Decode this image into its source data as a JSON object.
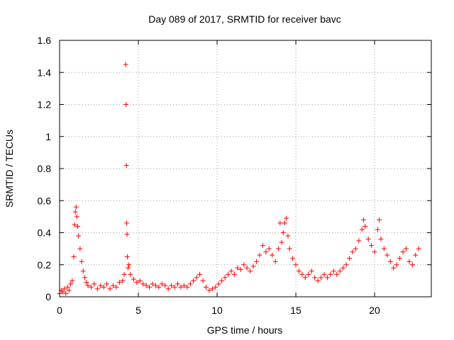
{
  "chart_data": {
    "type": "scatter",
    "title": "Day 089 of 2017, SRMTID for receiver bavc",
    "xlabel": "GPS time / hours",
    "ylabel": "SRMTID / TECUs",
    "xlim": [
      0,
      23.6
    ],
    "ylim": [
      0,
      1.6
    ],
    "xticks": [
      0,
      5,
      10,
      15,
      20
    ],
    "xtick_labels": [
      "0",
      "5",
      "10",
      "15",
      "20"
    ],
    "yticks": [
      0,
      0.2,
      0.4,
      0.6,
      0.8,
      1.0,
      1.2,
      1.4,
      1.6
    ],
    "ytick_labels": [
      "0",
      "0.2",
      "0.4",
      "0.6",
      "0.8",
      "1",
      "1.2",
      "1.4",
      "1.6"
    ],
    "grid": true,
    "marker": "+",
    "series": [
      {
        "name": "SRMTID",
        "color": "#ff0000",
        "points": [
          [
            0.0,
            0.02
          ],
          [
            0.1,
            0.04
          ],
          [
            0.2,
            0.03
          ],
          [
            0.3,
            0.05
          ],
          [
            0.4,
            0.02
          ],
          [
            0.5,
            0.06
          ],
          [
            0.6,
            0.04
          ],
          [
            0.7,
            0.08
          ],
          [
            0.8,
            0.1
          ],
          [
            0.9,
            0.25
          ],
          [
            0.95,
            0.45
          ],
          [
            1.0,
            0.53
          ],
          [
            1.05,
            0.56
          ],
          [
            1.1,
            0.5
          ],
          [
            1.15,
            0.44
          ],
          [
            1.2,
            0.38
          ],
          [
            1.3,
            0.3
          ],
          [
            1.4,
            0.22
          ],
          [
            1.5,
            0.16
          ],
          [
            1.6,
            0.12
          ],
          [
            1.7,
            0.09
          ],
          [
            1.8,
            0.07
          ],
          [
            2.0,
            0.06
          ],
          [
            2.2,
            0.08
          ],
          [
            2.4,
            0.05
          ],
          [
            2.6,
            0.07
          ],
          [
            2.8,
            0.06
          ],
          [
            3.0,
            0.08
          ],
          [
            3.2,
            0.05
          ],
          [
            3.4,
            0.07
          ],
          [
            3.6,
            0.06
          ],
          [
            3.8,
            0.09
          ],
          [
            4.0,
            0.1
          ],
          [
            4.1,
            0.14
          ],
          [
            4.2,
            1.45
          ],
          [
            4.22,
            1.2
          ],
          [
            4.24,
            0.82
          ],
          [
            4.26,
            0.46
          ],
          [
            4.28,
            0.39
          ],
          [
            4.3,
            0.25
          ],
          [
            4.35,
            0.18
          ],
          [
            4.4,
            0.2
          ],
          [
            4.5,
            0.14
          ],
          [
            4.7,
            0.11
          ],
          [
            4.9,
            0.09
          ],
          [
            5.1,
            0.1
          ],
          [
            5.3,
            0.08
          ],
          [
            5.5,
            0.07
          ],
          [
            5.7,
            0.06
          ],
          [
            5.9,
            0.08
          ],
          [
            6.1,
            0.07
          ],
          [
            6.3,
            0.06
          ],
          [
            6.5,
            0.08
          ],
          [
            6.7,
            0.07
          ],
          [
            6.9,
            0.05
          ],
          [
            7.1,
            0.07
          ],
          [
            7.3,
            0.06
          ],
          [
            7.5,
            0.08
          ],
          [
            7.7,
            0.06
          ],
          [
            7.9,
            0.07
          ],
          [
            8.1,
            0.06
          ],
          [
            8.3,
            0.08
          ],
          [
            8.5,
            0.1
          ],
          [
            8.7,
            0.12
          ],
          [
            8.9,
            0.14
          ],
          [
            9.1,
            0.1
          ],
          [
            9.3,
            0.06
          ],
          [
            9.5,
            0.04
          ],
          [
            9.7,
            0.05
          ],
          [
            9.9,
            0.06
          ],
          [
            10.1,
            0.08
          ],
          [
            10.3,
            0.1
          ],
          [
            10.5,
            0.12
          ],
          [
            10.7,
            0.14
          ],
          [
            10.9,
            0.16
          ],
          [
            11.1,
            0.14
          ],
          [
            11.3,
            0.18
          ],
          [
            11.5,
            0.17
          ],
          [
            11.7,
            0.2
          ],
          [
            11.9,
            0.18
          ],
          [
            12.1,
            0.16
          ],
          [
            12.3,
            0.19
          ],
          [
            12.5,
            0.22
          ],
          [
            12.7,
            0.26
          ],
          [
            12.9,
            0.32
          ],
          [
            13.1,
            0.28
          ],
          [
            13.3,
            0.3
          ],
          [
            13.5,
            0.26
          ],
          [
            13.7,
            0.22
          ],
          [
            13.9,
            0.3
          ],
          [
            14.0,
            0.46
          ],
          [
            14.1,
            0.34
          ],
          [
            14.2,
            0.4
          ],
          [
            14.3,
            0.46
          ],
          [
            14.4,
            0.49
          ],
          [
            14.5,
            0.38
          ],
          [
            14.6,
            0.3
          ],
          [
            14.8,
            0.24
          ],
          [
            15.0,
            0.2
          ],
          [
            15.2,
            0.16
          ],
          [
            15.4,
            0.14
          ],
          [
            15.6,
            0.12
          ],
          [
            15.8,
            0.14
          ],
          [
            16.0,
            0.16
          ],
          [
            16.2,
            0.12
          ],
          [
            16.4,
            0.1
          ],
          [
            16.6,
            0.12
          ],
          [
            16.8,
            0.14
          ],
          [
            17.0,
            0.12
          ],
          [
            17.2,
            0.14
          ],
          [
            17.4,
            0.16
          ],
          [
            17.6,
            0.14
          ],
          [
            17.8,
            0.16
          ],
          [
            18.0,
            0.18
          ],
          [
            18.2,
            0.2
          ],
          [
            18.4,
            0.24
          ],
          [
            18.6,
            0.28
          ],
          [
            18.8,
            0.3
          ],
          [
            19.0,
            0.35
          ],
          [
            19.2,
            0.42
          ],
          [
            19.3,
            0.48
          ],
          [
            19.4,
            0.44
          ],
          [
            19.6,
            0.36
          ],
          [
            19.8,
            0.32
          ],
          [
            20.0,
            0.28
          ],
          [
            20.2,
            0.42
          ],
          [
            20.3,
            0.48
          ],
          [
            20.4,
            0.36
          ],
          [
            20.6,
            0.3
          ],
          [
            20.8,
            0.26
          ],
          [
            21.0,
            0.22
          ],
          [
            21.2,
            0.18
          ],
          [
            21.4,
            0.2
          ],
          [
            21.6,
            0.24
          ],
          [
            21.8,
            0.28
          ],
          [
            22.0,
            0.3
          ],
          [
            22.2,
            0.22
          ],
          [
            22.4,
            0.2
          ],
          [
            22.6,
            0.26
          ],
          [
            22.8,
            0.3
          ]
        ]
      }
    ]
  }
}
